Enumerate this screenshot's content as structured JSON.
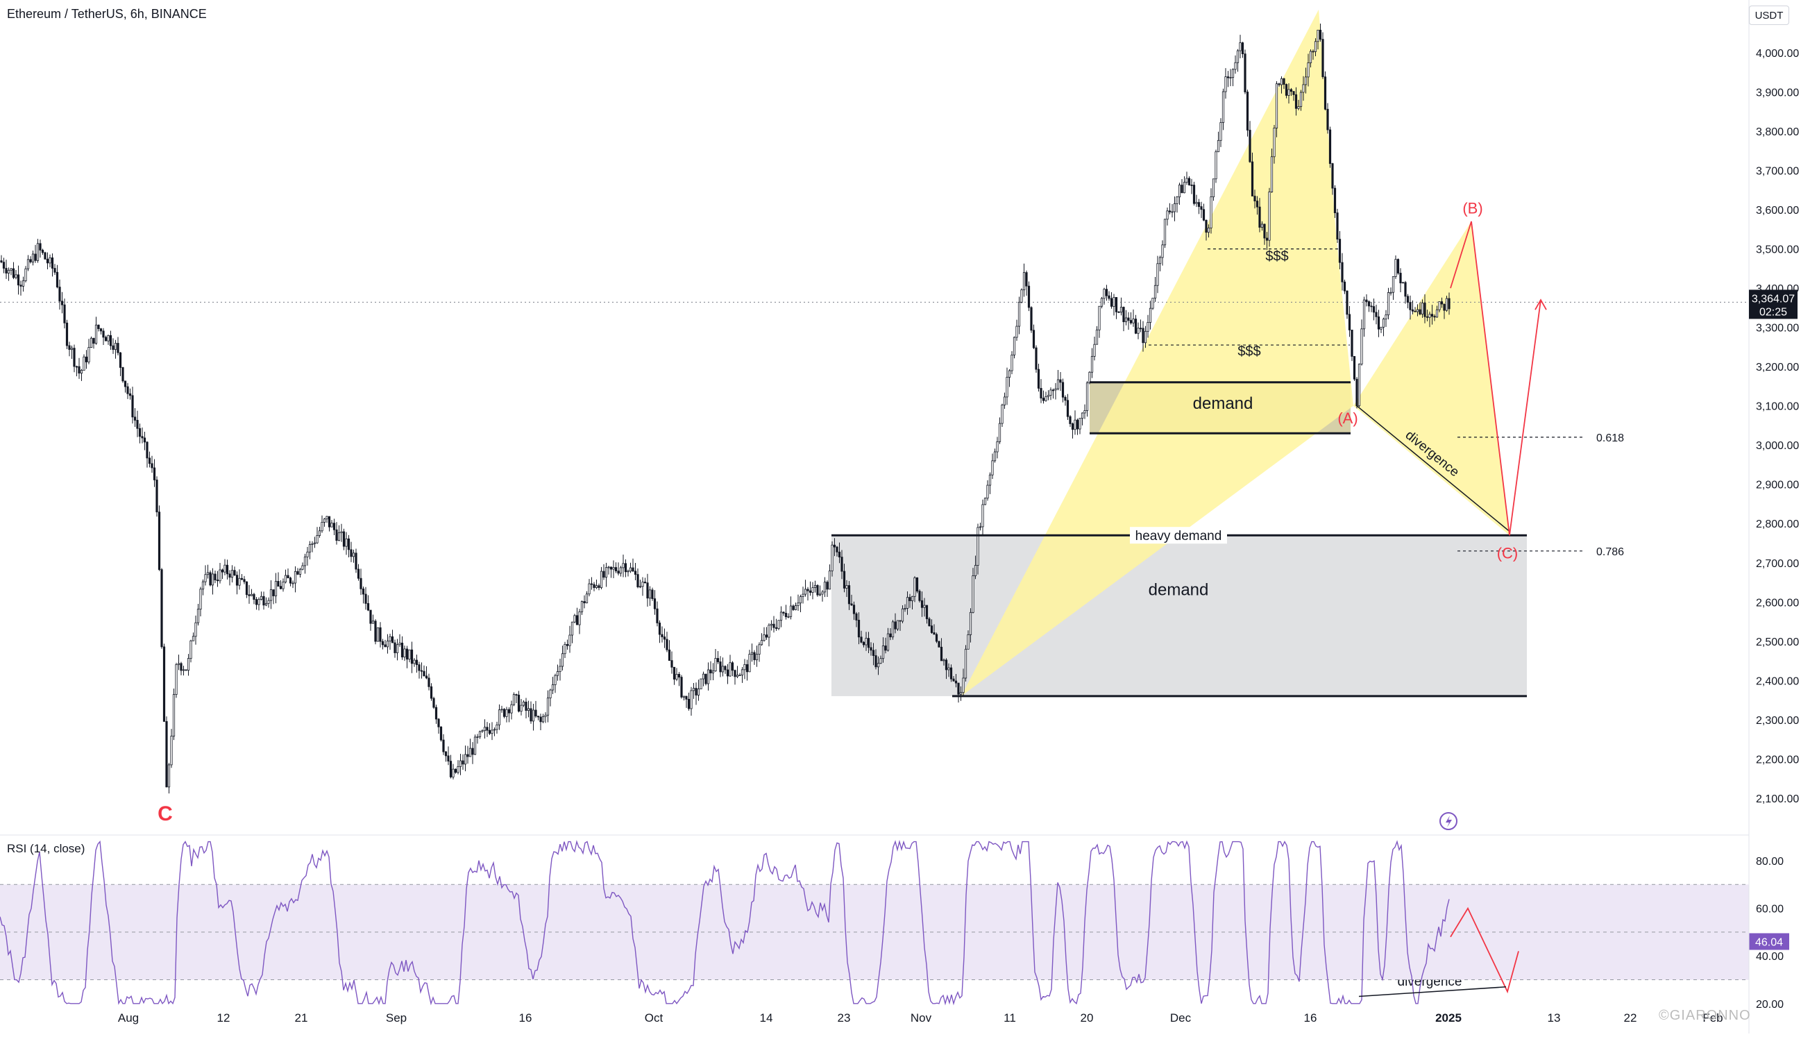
{
  "header": {
    "symbol_line": "Ethereum / TetherUS, 6h, BINANCE",
    "currency_button": "USDT"
  },
  "price_axis": {
    "ticks": [
      "4,000.00",
      "3,900.00",
      "3,800.00",
      "3,700.00",
      "3,600.00",
      "3,500.00",
      "3,400.00",
      "3,300.00",
      "3,200.00",
      "3,100.00",
      "3,000.00",
      "2,900.00",
      "2,800.00",
      "2,700.00",
      "2,600.00",
      "2,500.00",
      "2,400.00",
      "2,300.00",
      "2,200.00",
      "2,100.00"
    ],
    "current_price": "3,364.07",
    "countdown": "02:25"
  },
  "rsi": {
    "label": "RSI (14, close)",
    "ticks": [
      "80.00",
      "60.00",
      "40.00",
      "20.00"
    ],
    "current_value": "46.04"
  },
  "time_axis": {
    "labels": [
      "Aug",
      "12",
      "21",
      "Sep",
      "16",
      "Oct",
      "14",
      "23",
      "Nov",
      "11",
      "20",
      "Dec",
      "16",
      "2025",
      "13",
      "22",
      "Feb"
    ]
  },
  "annotations": {
    "dollars_1": "$$$",
    "dollars_2": "$$$",
    "demand_upper": "demand",
    "demand_lower": "demand",
    "heavy_demand": "heavy demand",
    "wave_a": "(A)",
    "wave_b": "(B)",
    "wave_c": "(C)",
    "wave_c_low": "C",
    "divergence_price": "divergence",
    "divergence_rsi": "divergence",
    "fib_618": "0.618",
    "fib_786": "0.786"
  },
  "watermark": "©GIARONNO",
  "colors": {
    "candle": "#131722",
    "yellow_fill": "#fff59d",
    "grey_zone": "#e0e1e3",
    "rsi_band": "#ede7f6",
    "rsi_line": "#7e57c2",
    "projection": "#f23645",
    "current_price_bg": "#131722"
  },
  "chart_data": {
    "type": "candlestick",
    "timeframe": "6h",
    "y_range": [
      2100,
      4000
    ],
    "rsi_range": [
      20,
      80
    ],
    "key_points": [
      {
        "label": "start",
        "time": "late Jul",
        "price": 3480
      },
      {
        "label": "C",
        "time": "Aug 5",
        "price": 2110
      },
      {
        "label": "Aug high",
        "time": "Aug 24",
        "price": 2810
      },
      {
        "label": "Sep low",
        "time": "Sep 7",
        "price": 2150
      },
      {
        "label": "Oct low",
        "time": "Oct 2",
        "price": 2310
      },
      {
        "label": "Oct high",
        "time": "Oct 21",
        "price": 2770
      },
      {
        "label": "Nov low",
        "time": "Nov 5",
        "price": 2360
      },
      {
        "label": "Nov high",
        "time": "Nov 12",
        "price": 3450
      },
      {
        "label": "Dec high",
        "time": "Dec 16",
        "price": 4100
      },
      {
        "label": "(A)",
        "time": "Dec 20",
        "price": 3100
      },
      {
        "label": "last",
        "time": "Dec 31",
        "price": 3364.07
      }
    ],
    "zones": [
      {
        "name": "demand",
        "from": 3030,
        "to": 3160
      },
      {
        "name": "heavy demand / demand",
        "from": 2360,
        "to": 2770
      }
    ],
    "fib_levels": [
      {
        "ratio": "0.618",
        "price": 3020
      },
      {
        "ratio": "0.786",
        "price": 2730
      }
    ],
    "projection": [
      {
        "label": "(A)",
        "price": 3100
      },
      {
        "label": "(B)",
        "price": 3570
      },
      {
        "label": "(C)",
        "price": 2770
      },
      {
        "label": "target",
        "price": 3370
      }
    ],
    "rsi_current": 46.04
  }
}
